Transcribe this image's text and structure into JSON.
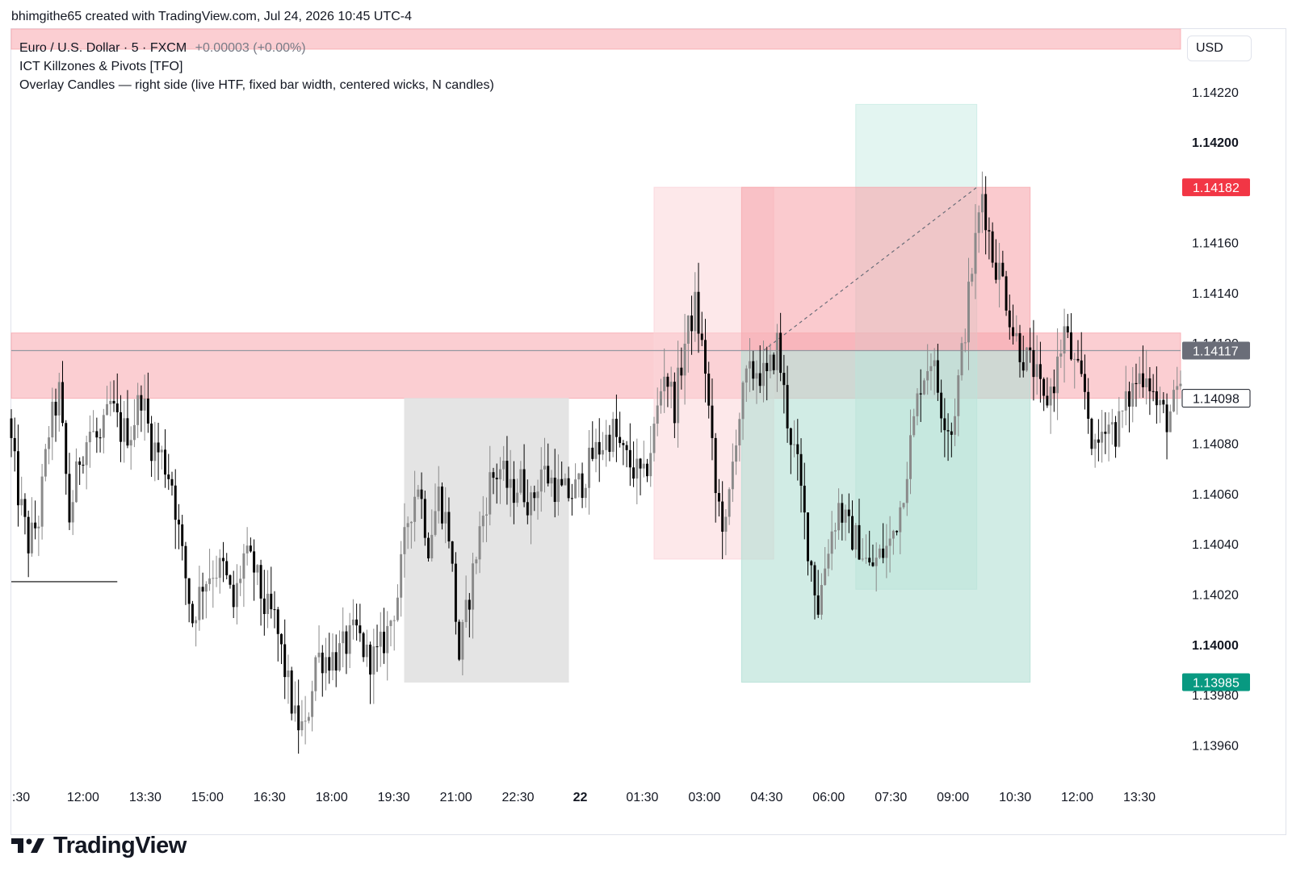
{
  "header": {
    "attribution": "bhimgithe65 created with TradingView.com, Jul 24, 2026 10:45 UTC-4"
  },
  "legend": {
    "symbol": "Euro / U.S. Dollar · 5 · FXCM",
    "change": "+0.00003 (+0.00%)",
    "indicator_1": "ICT Killzones & Pivots [TFO]",
    "indicator_2": "Overlay Candles — right side (live HTF, fixed bar width, centered wicks, N candles)"
  },
  "currency_button": "USD",
  "footer": {
    "brand": "TradingView"
  },
  "colors": {
    "up_candle": "#8a8a8a",
    "down_candle": "#000000",
    "stop_zone": "#f7a6ad",
    "target_zone": "#b2dfd4",
    "session_box": "#e3e3e3",
    "red_label": "#f23645",
    "green_label": "#089981",
    "grey_label": "#6a6d78"
  },
  "chart_data": {
    "type": "candlestick",
    "symbol": "EURUSD",
    "timeframe": "5",
    "ylim": [
      1.13945,
      1.14245
    ],
    "y_ticks": [
      "1.14220",
      "1.14200",
      "1.14160",
      "1.14140",
      "1.14120",
      "1.14080",
      "1.14060",
      "1.14040",
      "1.14020",
      "1.14000",
      "1.13980",
      "1.13960"
    ],
    "y_ticks_bold": [
      "1.14200",
      "1.14000"
    ],
    "x_ticks": [
      ":30",
      "12:00",
      "13:30",
      "15:00",
      "16:30",
      "18:00",
      "19:30",
      "21:00",
      "22:30",
      "22",
      "01:30",
      "03:00",
      "04:30",
      "06:00",
      "07:30",
      "09:00",
      "10:30",
      "12:00",
      "13:30"
    ],
    "x_ticks_bold": [
      "22"
    ],
    "price_labels": [
      {
        "text": "1.14182",
        "value": 1.14182,
        "style": "red"
      },
      {
        "text": "1.14117",
        "value": 1.14117,
        "style": "grey"
      },
      {
        "text": "1.14098",
        "value": 1.14098,
        "style": "outline"
      },
      {
        "text": "1.13985",
        "value": 1.13985,
        "style": "green"
      }
    ],
    "x_range_minutes": [
      600,
      2310
    ],
    "candle_interval_minutes": 5,
    "anchors": [
      [
        600,
        1.1409
      ],
      [
        615,
        1.1406
      ],
      [
        630,
        1.1404
      ],
      [
        645,
        1.1405
      ],
      [
        660,
        1.14085
      ],
      [
        675,
        1.141
      ],
      [
        690,
        1.1405
      ],
      [
        705,
        1.14075
      ],
      [
        720,
        1.14085
      ],
      [
        735,
        1.1408
      ],
      [
        750,
        1.14095
      ],
      [
        765,
        1.14085
      ],
      [
        780,
        1.14085
      ],
      [
        795,
        1.141
      ],
      [
        810,
        1.1408
      ],
      [
        825,
        1.14075
      ],
      [
        840,
        1.14065
      ],
      [
        855,
        1.14035
      ],
      [
        870,
        1.1401
      ],
      [
        885,
        1.14025
      ],
      [
        900,
        1.1403
      ],
      [
        915,
        1.1403
      ],
      [
        930,
        1.14015
      ],
      [
        945,
        1.14035
      ],
      [
        960,
        1.1403
      ],
      [
        975,
        1.14015
      ],
      [
        990,
        1.1401
      ],
      [
        1005,
        1.1399
      ],
      [
        1020,
        1.1397
      ],
      [
        1035,
        1.13965
      ],
      [
        1050,
        1.13995
      ],
      [
        1065,
        1.13995
      ],
      [
        1080,
        1.13995
      ],
      [
        1095,
        1.14
      ],
      [
        1110,
        1.14005
      ],
      [
        1125,
        1.13995
      ],
      [
        1140,
        1.13995
      ],
      [
        1155,
        1.14005
      ],
      [
        1170,
        1.1402
      ],
      [
        1185,
        1.1405
      ],
      [
        1200,
        1.14065
      ],
      [
        1215,
        1.1404
      ],
      [
        1230,
        1.1406
      ],
      [
        1245,
        1.14045
      ],
      [
        1260,
        1.13995
      ],
      [
        1275,
        1.1402
      ],
      [
        1290,
        1.14045
      ],
      [
        1305,
        1.14065
      ],
      [
        1320,
        1.1407
      ],
      [
        1335,
        1.1406
      ],
      [
        1350,
        1.14065
      ],
      [
        1365,
        1.14055
      ],
      [
        1380,
        1.1407
      ],
      [
        1395,
        1.14065
      ],
      [
        1410,
        1.1406
      ],
      [
        1425,
        1.1406
      ],
      [
        1440,
        1.14065
      ],
      [
        1455,
        1.14075
      ],
      [
        1470,
        1.1408
      ],
      [
        1485,
        1.14085
      ],
      [
        1500,
        1.14075
      ],
      [
        1515,
        1.1407
      ],
      [
        1530,
        1.14065
      ],
      [
        1545,
        1.14085
      ],
      [
        1560,
        1.1411
      ],
      [
        1575,
        1.14095
      ],
      [
        1590,
        1.1412
      ],
      [
        1605,
        1.14135
      ],
      [
        1620,
        1.1411
      ],
      [
        1635,
        1.1406
      ],
      [
        1650,
        1.14045
      ],
      [
        1665,
        1.14085
      ],
      [
        1680,
        1.14105
      ],
      [
        1695,
        1.1411
      ],
      [
        1710,
        1.14105
      ],
      [
        1725,
        1.1412
      ],
      [
        1740,
        1.1409
      ],
      [
        1755,
        1.1407
      ],
      [
        1770,
        1.1404
      ],
      [
        1785,
        1.14015
      ],
      [
        1800,
        1.1404
      ],
      [
        1815,
        1.14055
      ],
      [
        1830,
        1.14045
      ],
      [
        1845,
        1.1404
      ],
      [
        1860,
        1.1403
      ],
      [
        1875,
        1.14035
      ],
      [
        1890,
        1.1404
      ],
      [
        1905,
        1.14055
      ],
      [
        1920,
        1.1408
      ],
      [
        1935,
        1.14105
      ],
      [
        1950,
        1.14115
      ],
      [
        1965,
        1.14095
      ],
      [
        1980,
        1.14085
      ],
      [
        1995,
        1.14115
      ],
      [
        2010,
        1.1415
      ],
      [
        2025,
        1.1418
      ],
      [
        2040,
        1.14155
      ],
      [
        2055,
        1.14145
      ],
      [
        2070,
        1.14125
      ],
      [
        2085,
        1.14115
      ],
      [
        2100,
        1.1411
      ],
      [
        2115,
        1.14095
      ],
      [
        2130,
        1.14105
      ],
      [
        2145,
        1.14125
      ],
      [
        2160,
        1.1411
      ],
      [
        2175,
        1.141
      ],
      [
        2190,
        1.14075
      ],
      [
        2205,
        1.1409
      ],
      [
        2220,
        1.14085
      ],
      [
        2235,
        1.14095
      ],
      [
        2250,
        1.14105
      ],
      [
        2265,
        1.1411
      ],
      [
        2280,
        1.14095
      ],
      [
        2295,
        1.1409
      ],
      [
        2310,
        1.14098
      ]
    ],
    "overlays": [
      {
        "kind": "zone",
        "label": "resistance-band",
        "x": [
          600,
          2310
        ],
        "y": [
          1.14098,
          1.14124
        ],
        "color": "#f7a6ad",
        "opacity": 0.55
      },
      {
        "kind": "zone",
        "label": "top-band",
        "x": [
          600,
          2310
        ],
        "y": [
          1.14237,
          1.14245
        ],
        "color": "#f7a6ad",
        "opacity": 0.55
      },
      {
        "kind": "zone",
        "label": "session-box",
        "x": [
          1175,
          1415
        ],
        "y": [
          1.13985,
          1.14098
        ],
        "color": "#e3e3e3",
        "opacity": 0.95
      },
      {
        "kind": "zone",
        "label": "killzone-a",
        "x": [
          1540,
          1715
        ],
        "y": [
          1.14034,
          1.14182
        ],
        "color": "#fbd5d9",
        "opacity": 0.55
      },
      {
        "kind": "zone",
        "label": "killzone-b",
        "x": [
          1835,
          2012
        ],
        "y": [
          1.14022,
          1.14215
        ],
        "color": "#c8ebe3",
        "opacity": 0.5
      },
      {
        "kind": "zone",
        "label": "stop-zone",
        "x": [
          1668,
          2090
        ],
        "y": [
          1.14117,
          1.14182
        ],
        "color": "#f7a6ad",
        "opacity": 0.6
      },
      {
        "kind": "zone",
        "label": "target-zone",
        "x": [
          1668,
          2090
        ],
        "y": [
          1.13985,
          1.14117
        ],
        "color": "#b2dfd4",
        "opacity": 0.6
      }
    ],
    "lines": [
      {
        "label": "pivot-low-line",
        "x": [
          600,
          755
        ],
        "y": [
          1.14025,
          1.14025
        ],
        "color": "#000000",
        "dash": false
      },
      {
        "label": "price-line",
        "x": [
          600,
          2310
        ],
        "y": [
          1.14117,
          1.14117
        ],
        "color": "#9598a1",
        "dash": false
      },
      {
        "label": "trend-line",
        "x": [
          1700,
          2012
        ],
        "y": [
          1.14117,
          1.14182
        ],
        "color": "#6a6d78",
        "dash": true
      }
    ]
  }
}
